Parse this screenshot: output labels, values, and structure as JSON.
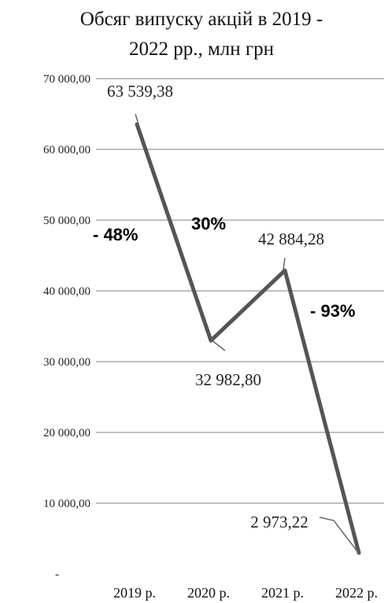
{
  "chart_data": {
    "type": "line",
    "title_lines": [
      "Обсяг випуску акцій в 2019 -",
      "2022 рр., млн грн"
    ],
    "categories": [
      "2019 р.",
      "2020 р.",
      "2021 р.",
      "2022 р."
    ],
    "series": [
      {
        "values": [
          63539.38,
          32982.8,
          42884.28,
          2973.22
        ]
      }
    ],
    "data_labels": [
      "63 539,38",
      "32 982,80",
      "42 884,28",
      "2 973,22"
    ],
    "y_ticks": [
      0,
      10000,
      20000,
      30000,
      40000,
      50000,
      60000,
      70000
    ],
    "y_tick_labels": [
      "-",
      "10 000,00",
      "20 000,00",
      "30 000,00",
      "40 000,00",
      "50 000,00",
      "60 000,00",
      "70 000,00"
    ],
    "ylim": [
      0,
      70000
    ],
    "grid": true,
    "legend": "none",
    "line_color": "#555555",
    "annotations": [
      "- 48%",
      "30%",
      "- 93%"
    ]
  }
}
